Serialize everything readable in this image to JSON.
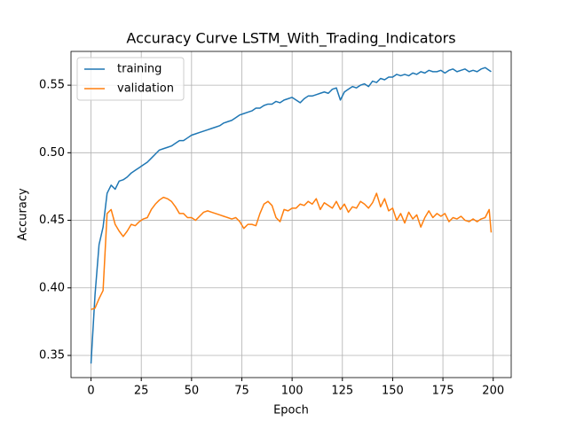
{
  "chart_data": {
    "type": "line",
    "title": "Accuracy Curve LSTM_With_Trading_Indicators",
    "x_label": "Epoch",
    "y_label": "Accuracy",
    "x": [
      0,
      2,
      4,
      6,
      8,
      10,
      12,
      14,
      16,
      18,
      20,
      22,
      24,
      26,
      28,
      30,
      32,
      34,
      36,
      38,
      40,
      42,
      44,
      46,
      48,
      50,
      52,
      54,
      56,
      58,
      60,
      62,
      64,
      66,
      68,
      70,
      72,
      74,
      76,
      78,
      80,
      82,
      84,
      86,
      88,
      90,
      92,
      94,
      96,
      98,
      100,
      102,
      104,
      106,
      108,
      110,
      112,
      114,
      116,
      118,
      120,
      122,
      124,
      126,
      128,
      130,
      132,
      134,
      136,
      138,
      140,
      142,
      144,
      146,
      148,
      150,
      152,
      154,
      156,
      158,
      160,
      162,
      164,
      166,
      168,
      170,
      172,
      174,
      176,
      178,
      180,
      182,
      184,
      186,
      188,
      190,
      192,
      194,
      196,
      198,
      199
    ],
    "series": [
      {
        "name": "training",
        "color": "#1f77b4",
        "values": [
          0.344,
          0.395,
          0.432,
          0.445,
          0.47,
          0.476,
          0.473,
          0.479,
          0.48,
          0.482,
          0.485,
          0.487,
          0.489,
          0.491,
          0.493,
          0.496,
          0.499,
          0.502,
          0.503,
          0.504,
          0.505,
          0.507,
          0.509,
          0.509,
          0.511,
          0.513,
          0.514,
          0.515,
          0.516,
          0.517,
          0.518,
          0.519,
          0.52,
          0.522,
          0.523,
          0.524,
          0.526,
          0.528,
          0.529,
          0.53,
          0.531,
          0.533,
          0.533,
          0.535,
          0.536,
          0.536,
          0.538,
          0.537,
          0.539,
          0.54,
          0.541,
          0.539,
          0.537,
          0.54,
          0.542,
          0.542,
          0.543,
          0.544,
          0.545,
          0.544,
          0.547,
          0.548,
          0.539,
          0.545,
          0.547,
          0.549,
          0.548,
          0.55,
          0.551,
          0.549,
          0.553,
          0.552,
          0.555,
          0.554,
          0.556,
          0.556,
          0.558,
          0.557,
          0.558,
          0.557,
          0.559,
          0.558,
          0.56,
          0.559,
          0.561,
          0.56,
          0.56,
          0.561,
          0.559,
          0.561,
          0.562,
          0.56,
          0.561,
          0.562,
          0.56,
          0.561,
          0.56,
          0.562,
          0.563,
          0.561,
          0.56
        ]
      },
      {
        "name": "validation",
        "color": "#ff7f0e",
        "values": [
          0.384,
          0.385,
          0.392,
          0.398,
          0.455,
          0.458,
          0.447,
          0.442,
          0.438,
          0.442,
          0.447,
          0.446,
          0.449,
          0.451,
          0.452,
          0.458,
          0.462,
          0.465,
          0.467,
          0.466,
          0.464,
          0.46,
          0.455,
          0.455,
          0.452,
          0.452,
          0.45,
          0.453,
          0.456,
          0.457,
          0.456,
          0.455,
          0.454,
          0.453,
          0.452,
          0.451,
          0.452,
          0.449,
          0.444,
          0.447,
          0.447,
          0.446,
          0.455,
          0.462,
          0.464,
          0.461,
          0.452,
          0.449,
          0.458,
          0.457,
          0.459,
          0.459,
          0.462,
          0.461,
          0.464,
          0.462,
          0.466,
          0.458,
          0.463,
          0.461,
          0.459,
          0.464,
          0.458,
          0.462,
          0.456,
          0.46,
          0.459,
          0.464,
          0.462,
          0.459,
          0.463,
          0.47,
          0.46,
          0.466,
          0.457,
          0.459,
          0.45,
          0.455,
          0.448,
          0.456,
          0.451,
          0.454,
          0.445,
          0.452,
          0.457,
          0.452,
          0.455,
          0.453,
          0.455,
          0.449,
          0.452,
          0.451,
          0.453,
          0.45,
          0.449,
          0.451,
          0.449,
          0.451,
          0.452,
          0.458,
          0.441
        ]
      }
    ],
    "xlim": [
      -9.95,
      208.95
    ],
    "xticks": [
      0,
      25,
      50,
      75,
      100,
      125,
      150,
      175,
      200
    ],
    "ylim": [
      0.3336,
      0.575
    ],
    "yticks": [
      0.35,
      {
        "value": 0.4,
        "label": "0.40"
      },
      0.45,
      {
        "value": 0.5,
        "label": "0.50"
      },
      0.55
    ],
    "grid": true,
    "legend": "upper left"
  }
}
